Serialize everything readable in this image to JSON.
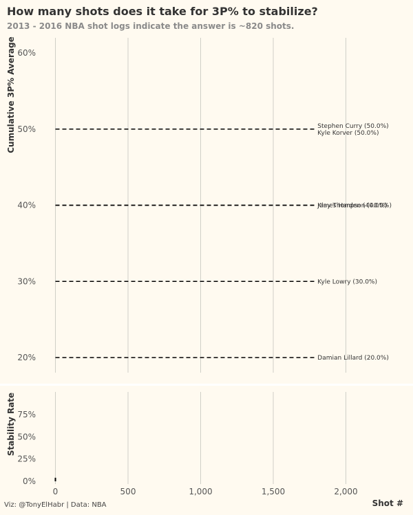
{
  "title": "How many shots does it take for 3P% to stabilize?",
  "subtitle": "2013 - 2016 NBA shot logs indicate the answer is ~820 shots.",
  "caption": "Viz: @TonyElHabr | Data: NBA",
  "colors": {
    "background": "#fffaf0",
    "grid": "#cfcfc7",
    "line": "#000000"
  },
  "chart_data": [
    {
      "type": "line",
      "ylabel": "Cumulative 3P% Average",
      "xlim": [
        0,
        2400
      ],
      "ylim": [
        0.18,
        0.62
      ],
      "y_ticks": [
        {
          "value": 0.2,
          "label": "20%"
        },
        {
          "value": 0.3,
          "label": "30%"
        },
        {
          "value": 0.4,
          "label": "40%"
        },
        {
          "value": 0.5,
          "label": "50%"
        },
        {
          "value": 0.6,
          "label": "60%"
        }
      ],
      "x_gridlines": [
        0,
        500,
        1000,
        1500,
        2000
      ],
      "series": [
        {
          "name": "Stephen Curry",
          "value": 0.5,
          "x_range": [
            0,
            1800
          ],
          "label": "Stephen Curry (50.0%)",
          "label_offset": -1
        },
        {
          "name": "Kyle Korver",
          "value": 0.5,
          "x_range": [
            0,
            1800
          ],
          "label": "Kyle Korver (50.0%)",
          "label_offset": 1
        },
        {
          "name": "Klay Thompson",
          "value": 0.4,
          "x_range": [
            0,
            1800
          ],
          "label": "Klay Thompson (40.0%)",
          "label_offset": 0
        },
        {
          "name": "James Harden",
          "value": 0.4,
          "x_range": [
            0,
            1800
          ],
          "label": "James Harden (40.0%)",
          "label_offset": 0
        },
        {
          "name": "Kyle Lowry",
          "value": 0.3,
          "x_range": [
            0,
            1800
          ],
          "label": "Kyle Lowry (30.0%)",
          "label_offset": 0
        },
        {
          "name": "Damian Lillard",
          "value": 0.2,
          "x_range": [
            0,
            1800
          ],
          "label": "Damian Lillard (20.0%)",
          "label_offset": 0
        }
      ],
      "line_style": "dashed",
      "grid": true
    },
    {
      "type": "line",
      "ylabel": "Stability Rate",
      "xlabel": "Shot #",
      "xlim": [
        0,
        2400
      ],
      "ylim": [
        0,
        1
      ],
      "x_ticks": [
        {
          "value": 0,
          "label": "0"
        },
        {
          "value": 500,
          "label": "500"
        },
        {
          "value": 1000,
          "label": "1,000"
        },
        {
          "value": 1500,
          "label": "1,500"
        },
        {
          "value": 2000,
          "label": "2,000"
        }
      ],
      "y_ticks": [
        {
          "value": 0,
          "label": "0%"
        },
        {
          "value": 0.25,
          "label": "25%"
        },
        {
          "value": 0.5,
          "label": "50%"
        },
        {
          "value": 0.75,
          "label": "75%"
        }
      ],
      "series": [
        {
          "name": "",
          "x": [
            0,
            0
          ],
          "y": [
            0,
            0.04
          ]
        }
      ],
      "grid": true
    }
  ]
}
